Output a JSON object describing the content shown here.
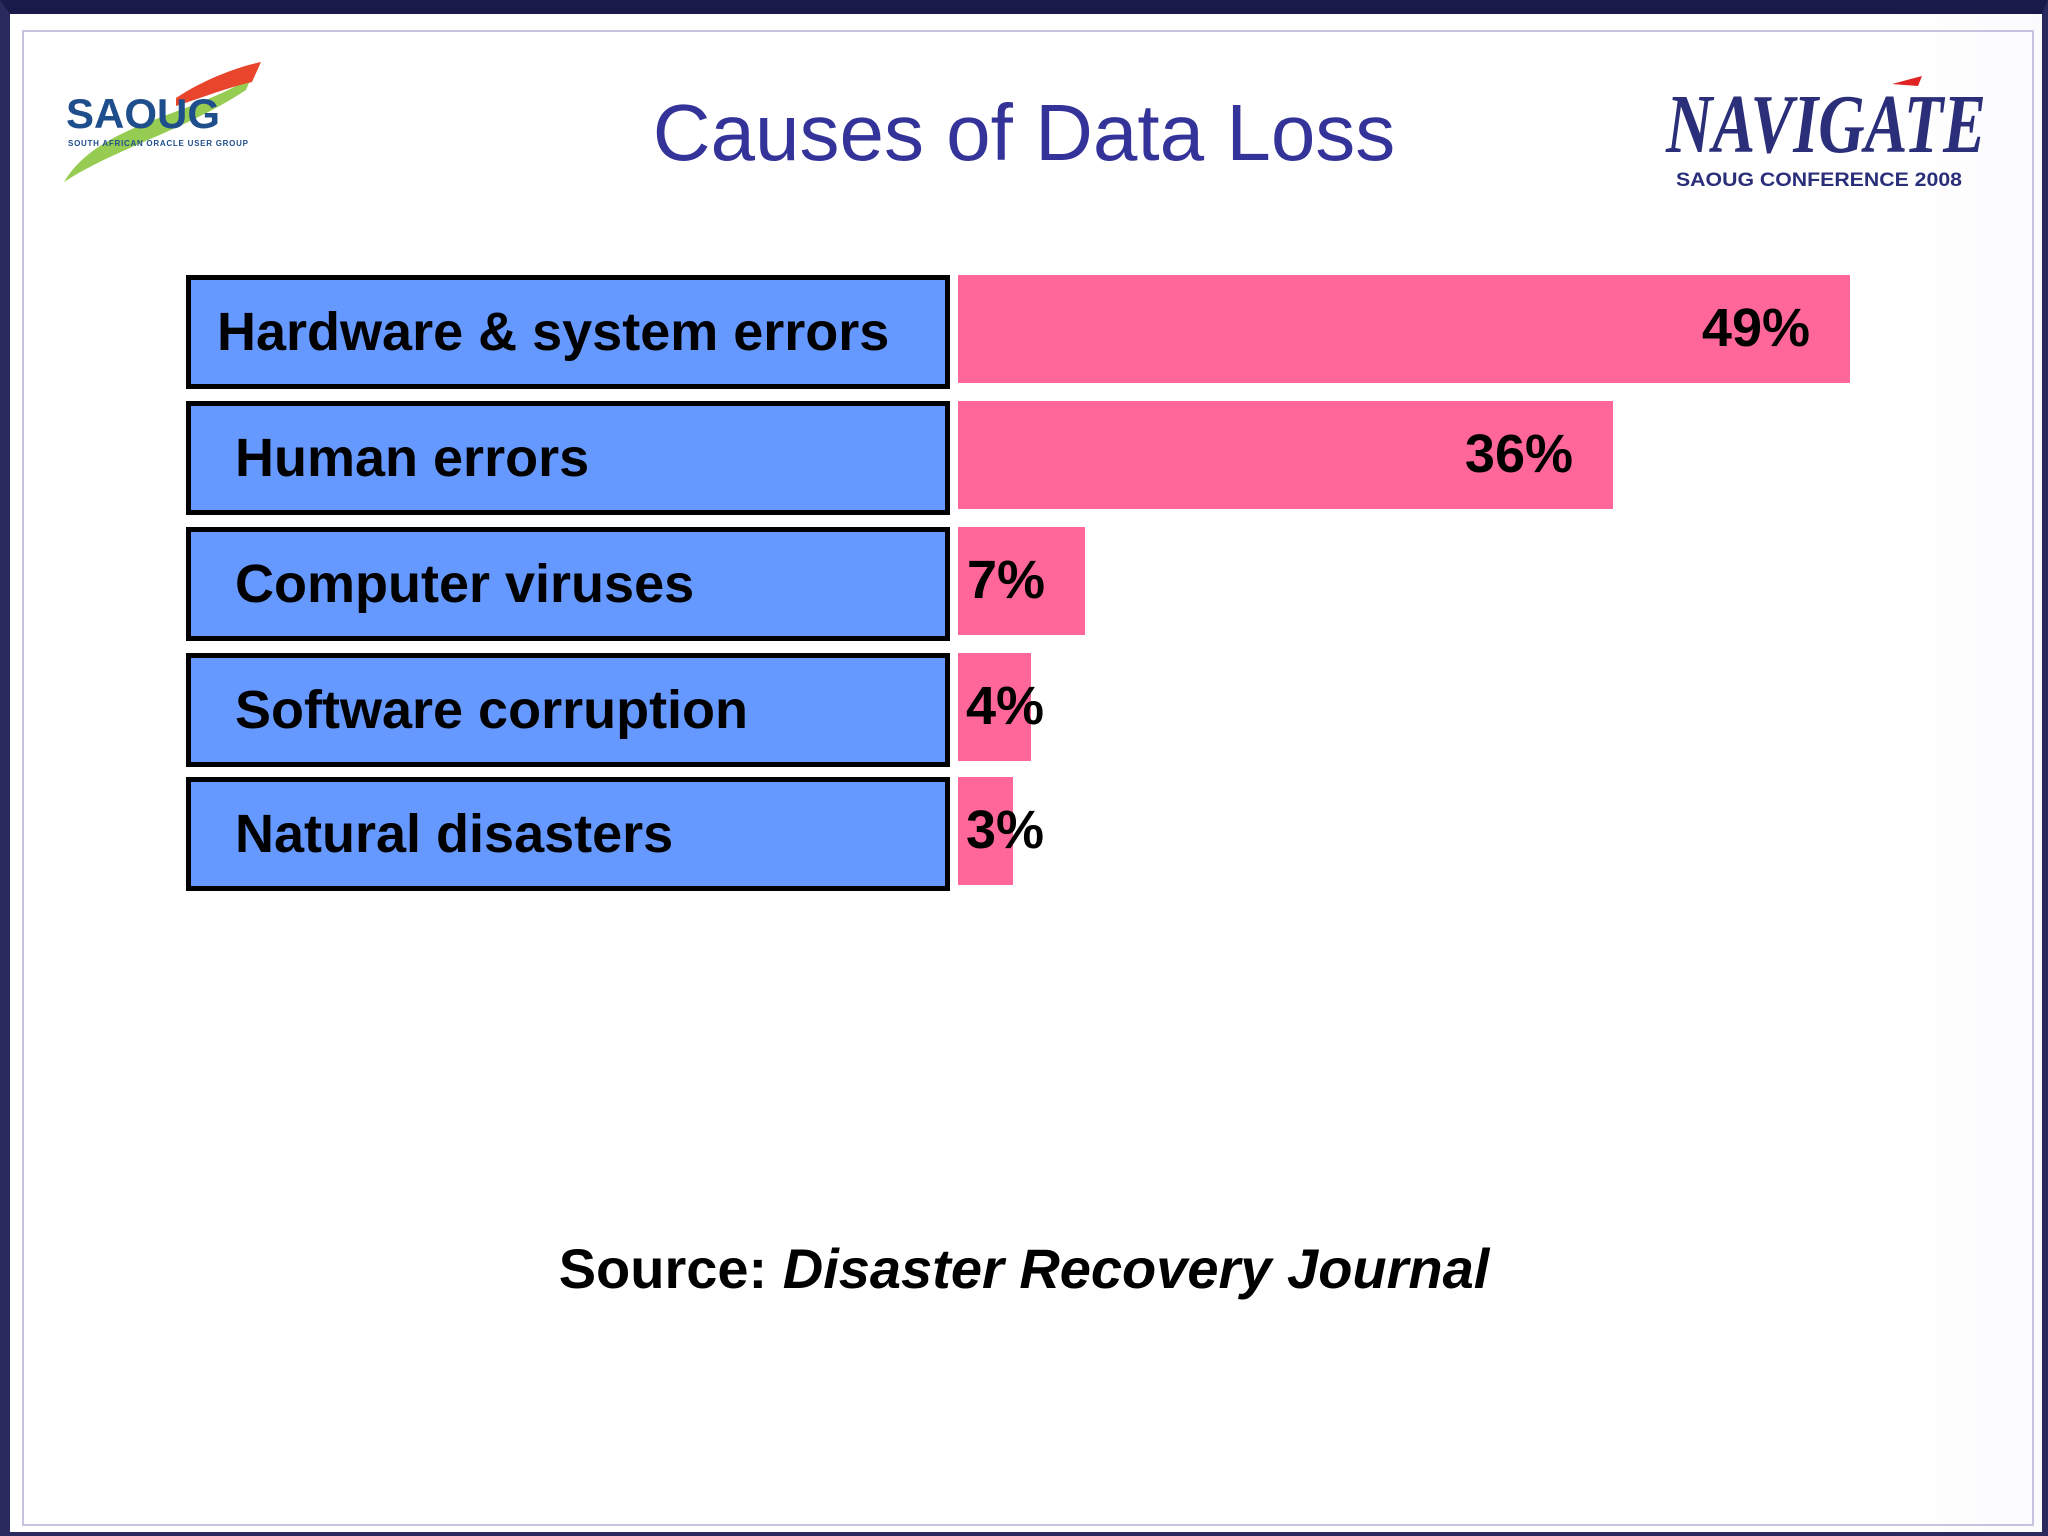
{
  "slide": {
    "title": "Causes of Data Loss"
  },
  "logos": {
    "left": {
      "text": "SAOUG",
      "subtext": "SOUTH AFRICAN ORACLE USER GROUP"
    },
    "right": {
      "text": "NAVIGATE",
      "subtext": "SAOUG CONFERENCE 2008"
    }
  },
  "colors": {
    "title": "#333399",
    "label_fill": "#6699ff",
    "bar_fill": "#ff6699",
    "text": "#000000"
  },
  "chart_data": {
    "type": "bar",
    "orientation": "horizontal",
    "categories": [
      "Hardware & system errors",
      "Human errors",
      "Computer viruses",
      "Software corruption",
      "Natural disasters"
    ],
    "values": [
      49,
      36,
      7,
      4,
      3
    ],
    "value_labels": [
      "49%",
      "36%",
      "7%",
      "4%",
      "3%"
    ],
    "title": "Causes of Data Loss",
    "xlabel": "",
    "ylabel": "",
    "xlim": [
      0,
      50
    ],
    "grid": false,
    "legend": "none"
  },
  "source": {
    "prefix": "Source:",
    "journal": "Disaster Recovery Journal"
  }
}
